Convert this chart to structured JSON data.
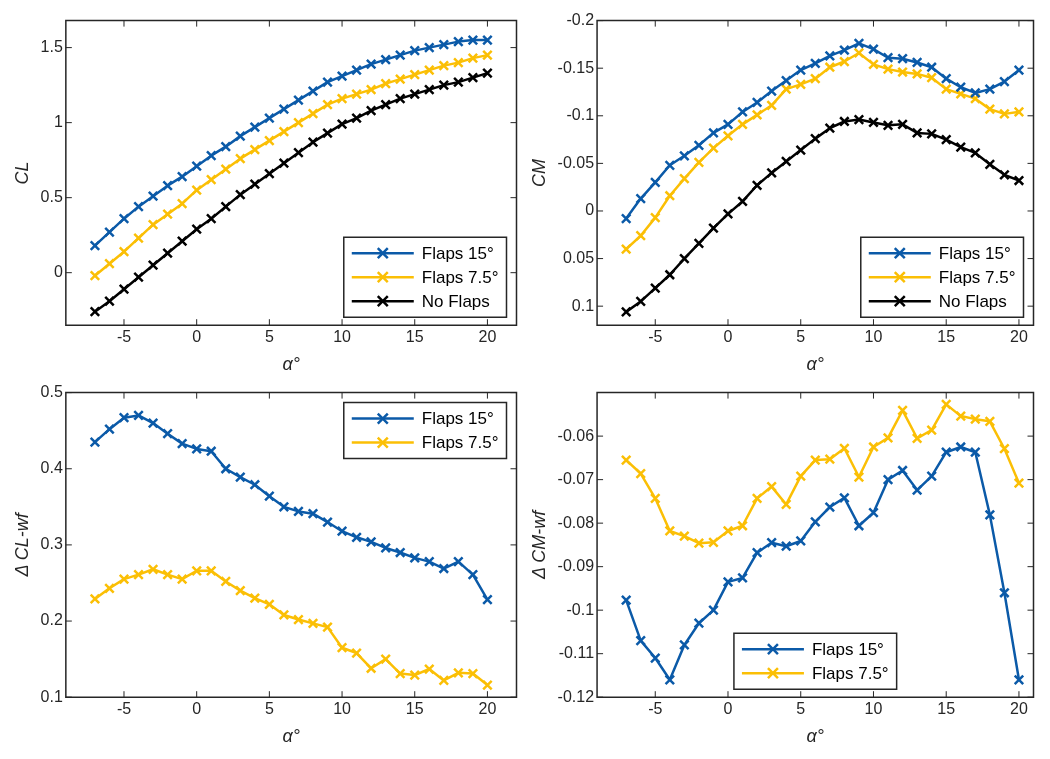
{
  "chart_data": [
    {
      "type": "line",
      "xlabel": "α°",
      "ylabel": "CL",
      "x": [
        -7,
        -6,
        -5,
        -4,
        -3,
        -2,
        -1,
        0,
        1,
        2,
        3,
        4,
        5,
        6,
        7,
        8,
        9,
        10,
        11,
        12,
        13,
        14,
        15,
        16,
        17,
        18,
        19,
        20
      ],
      "xlim": [
        -9,
        22
      ],
      "xticks": [
        -5,
        0,
        5,
        10,
        15,
        20
      ],
      "ylim": [
        -0.35,
        1.68
      ],
      "yticks": [
        0,
        0.5,
        1,
        1.5
      ],
      "grid": false,
      "legend": "bottom right",
      "marker": "cross",
      "line_style": "solid",
      "series": [
        {
          "name": "Flaps 15°",
          "color": "#0b5aa8",
          "values": [
            0.18,
            0.27,
            0.36,
            0.44,
            0.51,
            0.58,
            0.64,
            0.71,
            0.78,
            0.84,
            0.91,
            0.97,
            1.03,
            1.09,
            1.15,
            1.21,
            1.27,
            1.31,
            1.35,
            1.39,
            1.42,
            1.45,
            1.48,
            1.5,
            1.52,
            1.54,
            1.55,
            1.55
          ]
        },
        {
          "name": "Flaps 7.5°",
          "color": "#fbbf05",
          "values": [
            -0.02,
            0.06,
            0.14,
            0.23,
            0.32,
            0.39,
            0.46,
            0.55,
            0.62,
            0.69,
            0.76,
            0.82,
            0.88,
            0.94,
            1.0,
            1.06,
            1.12,
            1.16,
            1.19,
            1.22,
            1.26,
            1.29,
            1.32,
            1.35,
            1.38,
            1.4,
            1.43,
            1.45
          ]
        },
        {
          "name": "No Flaps",
          "color": "#000000",
          "values": [
            -0.26,
            -0.19,
            -0.11,
            -0.03,
            0.05,
            0.13,
            0.21,
            0.29,
            0.36,
            0.44,
            0.52,
            0.59,
            0.66,
            0.73,
            0.8,
            0.87,
            0.93,
            0.99,
            1.03,
            1.08,
            1.12,
            1.16,
            1.19,
            1.22,
            1.25,
            1.27,
            1.3,
            1.33
          ]
        }
      ]
    },
    {
      "type": "line",
      "xlabel": "α°",
      "ylabel": "CM",
      "x": [
        -7,
        -6,
        -5,
        -4,
        -3,
        -2,
        -1,
        0,
        1,
        2,
        3,
        4,
        5,
        6,
        7,
        8,
        9,
        10,
        11,
        12,
        13,
        14,
        15,
        16,
        17,
        18,
        19,
        20
      ],
      "xlim": [
        -9,
        21
      ],
      "xticks": [
        -5,
        0,
        5,
        10,
        15,
        20
      ],
      "ylim": [
        0.12,
        -0.2
      ],
      "yticks": [
        -0.2,
        -0.15,
        -0.1,
        -0.05,
        0,
        0.05,
        0.1
      ],
      "grid": false,
      "legend": "bottom right",
      "marker": "cross",
      "line_style": "solid",
      "series": [
        {
          "name": "Flaps 15°",
          "color": "#0b5aa8",
          "values": [
            0.008,
            -0.013,
            -0.03,
            -0.048,
            -0.058,
            -0.069,
            -0.082,
            -0.091,
            -0.104,
            -0.114,
            -0.126,
            -0.137,
            -0.148,
            -0.155,
            -0.163,
            -0.169,
            -0.176,
            -0.17,
            -0.161,
            -0.16,
            -0.156,
            -0.151,
            -0.139,
            -0.13,
            -0.124,
            -0.128,
            -0.136,
            -0.148
          ]
        },
        {
          "name": "Flaps 7.5°",
          "color": "#fbbf05",
          "values": [
            0.04,
            0.026,
            0.007,
            -0.016,
            -0.034,
            -0.051,
            -0.066,
            -0.079,
            -0.091,
            -0.101,
            -0.111,
            -0.128,
            -0.133,
            -0.139,
            -0.151,
            -0.157,
            -0.166,
            -0.154,
            -0.149,
            -0.146,
            -0.144,
            -0.14,
            -0.128,
            -0.123,
            -0.118,
            -0.107,
            -0.102,
            -0.104
          ]
        },
        {
          "name": "No Flaps",
          "color": "#000000",
          "values": [
            0.106,
            0.095,
            0.081,
            0.067,
            0.05,
            0.034,
            0.018,
            0.003,
            -0.01,
            -0.027,
            -0.04,
            -0.052,
            -0.064,
            -0.076,
            -0.087,
            -0.094,
            -0.096,
            -0.093,
            -0.09,
            -0.091,
            -0.082,
            -0.081,
            -0.075,
            -0.067,
            -0.061,
            -0.049,
            -0.038,
            -0.032
          ]
        }
      ]
    },
    {
      "type": "line",
      "xlabel": "α°",
      "ylabel": "Δ CL-wf",
      "x": [
        -7,
        -6,
        -5,
        -4,
        -3,
        -2,
        -1,
        0,
        1,
        2,
        3,
        4,
        5,
        6,
        7,
        8,
        9,
        10,
        11,
        12,
        13,
        14,
        15,
        16,
        17,
        18,
        19,
        20
      ],
      "xlim": [
        -9,
        22
      ],
      "xticks": [
        -5,
        0,
        5,
        10,
        15,
        20
      ],
      "ylim": [
        0.1,
        0.5
      ],
      "yticks": [
        0.1,
        0.2,
        0.3,
        0.4,
        0.5
      ],
      "grid": false,
      "legend": "top right",
      "marker": "cross",
      "line_style": "solid",
      "series": [
        {
          "name": "Flaps 15°",
          "color": "#0b5aa8",
          "values": [
            0.435,
            0.452,
            0.467,
            0.47,
            0.46,
            0.446,
            0.433,
            0.426,
            0.423,
            0.4,
            0.389,
            0.379,
            0.364,
            0.35,
            0.344,
            0.341,
            0.33,
            0.318,
            0.31,
            0.304,
            0.296,
            0.29,
            0.283,
            0.278,
            0.269,
            0.278,
            0.261,
            0.228
          ]
        },
        {
          "name": "Flaps 7.5°",
          "color": "#fbbf05",
          "values": [
            0.229,
            0.243,
            0.255,
            0.261,
            0.268,
            0.261,
            0.255,
            0.266,
            0.266,
            0.252,
            0.24,
            0.23,
            0.222,
            0.208,
            0.202,
            0.197,
            0.192,
            0.165,
            0.158,
            0.138,
            0.15,
            0.131,
            0.129,
            0.137,
            0.122,
            0.132,
            0.131,
            0.116
          ]
        }
      ]
    },
    {
      "type": "line",
      "xlabel": "α°",
      "ylabel": "Δ CM-wf",
      "x": [
        -7,
        -6,
        -5,
        -4,
        -3,
        -2,
        -1,
        0,
        1,
        2,
        3,
        4,
        5,
        6,
        7,
        8,
        9,
        10,
        11,
        12,
        13,
        14,
        15,
        16,
        17,
        18,
        19,
        20
      ],
      "xlim": [
        -9,
        21
      ],
      "xticks": [
        -5,
        0,
        5,
        10,
        15,
        20
      ],
      "ylim": [
        -0.12,
        -0.05
      ],
      "yticks": [
        -0.12,
        -0.11,
        -0.1,
        -0.09,
        -0.08,
        -0.07,
        -0.06
      ],
      "grid": false,
      "legend": "bottom",
      "marker": "cross",
      "line_style": "solid",
      "series": [
        {
          "name": "Flaps 15°",
          "color": "#0b5aa8",
          "values": [
            -0.0977,
            -0.107,
            -0.111,
            -0.116,
            -0.108,
            -0.103,
            -0.1,
            -0.0935,
            -0.0926,
            -0.0868,
            -0.0845,
            -0.0853,
            -0.0841,
            -0.0797,
            -0.0763,
            -0.0742,
            -0.0806,
            -0.0776,
            -0.07,
            -0.0679,
            -0.0724,
            -0.0692,
            -0.0637,
            -0.0625,
            -0.0637,
            -0.0781,
            -0.096,
            -0.116
          ]
        },
        {
          "name": "Flaps 7.5°",
          "color": "#fbbf05",
          "values": [
            -0.0655,
            -0.0686,
            -0.0743,
            -0.0818,
            -0.083,
            -0.0846,
            -0.0844,
            -0.0818,
            -0.0806,
            -0.0743,
            -0.0716,
            -0.0757,
            -0.0692,
            -0.0655,
            -0.0653,
            -0.0628,
            -0.0694,
            -0.0625,
            -0.0604,
            -0.0541,
            -0.0605,
            -0.0586,
            -0.0527,
            -0.0554,
            -0.0561,
            -0.0566,
            -0.0629,
            -0.0708
          ]
        }
      ]
    }
  ]
}
